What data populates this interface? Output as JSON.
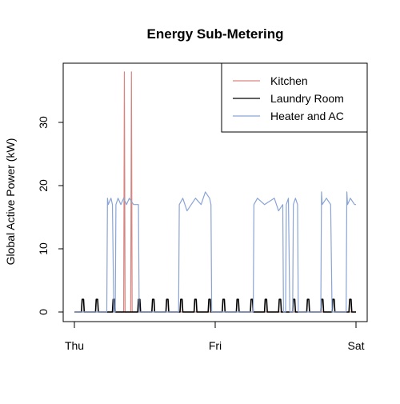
{
  "chart_data": {
    "type": "line",
    "title": "Energy Sub-Metering",
    "xlabel": "",
    "ylabel": "Global Active Power (kW)",
    "x_tick_labels": [
      "Thu",
      "Fri",
      "Sat"
    ],
    "x_ticks": [
      0,
      1,
      2
    ],
    "x_range": [
      0,
      2
    ],
    "ylim": [
      0,
      38
    ],
    "y_ticks": [
      0,
      10,
      20,
      30
    ],
    "grid": false,
    "legend_position": "top-right",
    "series": [
      {
        "name": "Kitchen",
        "color": "#d9837f",
        "points": [
          [
            0,
            0
          ],
          [
            0.35,
            0
          ],
          [
            0.355,
            38
          ],
          [
            0.36,
            0
          ],
          [
            0.4,
            0
          ],
          [
            0.405,
            38
          ],
          [
            0.41,
            0
          ],
          [
            2,
            0
          ]
        ]
      },
      {
        "name": "Laundry Room",
        "color": "#000000",
        "points": [
          [
            0,
            0
          ],
          [
            0.05,
            0
          ],
          [
            0.055,
            2
          ],
          [
            0.065,
            2
          ],
          [
            0.07,
            0
          ],
          [
            0.15,
            0
          ],
          [
            0.155,
            2
          ],
          [
            0.165,
            2
          ],
          [
            0.17,
            0
          ],
          [
            0.27,
            0
          ],
          [
            0.275,
            2
          ],
          [
            0.285,
            2
          ],
          [
            0.29,
            0
          ],
          [
            0.45,
            0
          ],
          [
            0.455,
            2
          ],
          [
            0.465,
            2
          ],
          [
            0.47,
            0
          ],
          [
            0.55,
            0
          ],
          [
            0.555,
            2
          ],
          [
            0.565,
            2
          ],
          [
            0.57,
            0
          ],
          [
            0.65,
            0
          ],
          [
            0.655,
            2
          ],
          [
            0.665,
            2
          ],
          [
            0.67,
            0
          ],
          [
            0.75,
            0
          ],
          [
            0.755,
            2
          ],
          [
            0.765,
            2
          ],
          [
            0.77,
            0
          ],
          [
            0.85,
            0
          ],
          [
            0.855,
            2
          ],
          [
            0.865,
            2
          ],
          [
            0.87,
            0
          ],
          [
            0.95,
            0
          ],
          [
            0.955,
            2
          ],
          [
            0.965,
            2
          ],
          [
            0.97,
            0
          ],
          [
            1.05,
            0
          ],
          [
            1.055,
            2
          ],
          [
            1.065,
            2
          ],
          [
            1.07,
            0
          ],
          [
            1.15,
            0
          ],
          [
            1.155,
            2
          ],
          [
            1.165,
            2
          ],
          [
            1.17,
            0
          ],
          [
            1.25,
            0
          ],
          [
            1.255,
            2
          ],
          [
            1.265,
            2
          ],
          [
            1.27,
            0
          ],
          [
            1.35,
            0
          ],
          [
            1.355,
            2
          ],
          [
            1.365,
            2
          ],
          [
            1.37,
            0
          ],
          [
            1.45,
            0
          ],
          [
            1.455,
            2
          ],
          [
            1.465,
            2
          ],
          [
            1.47,
            0
          ],
          [
            1.55,
            0
          ],
          [
            1.555,
            2
          ],
          [
            1.565,
            2
          ],
          [
            1.57,
            0
          ],
          [
            1.65,
            0
          ],
          [
            1.655,
            2
          ],
          [
            1.665,
            2
          ],
          [
            1.67,
            0
          ],
          [
            1.75,
            0
          ],
          [
            1.755,
            2
          ],
          [
            1.765,
            2
          ],
          [
            1.77,
            0
          ],
          [
            1.83,
            0
          ],
          [
            1.835,
            2
          ],
          [
            1.845,
            2
          ],
          [
            1.85,
            0
          ],
          [
            1.95,
            0
          ],
          [
            1.955,
            2
          ],
          [
            1.965,
            2
          ],
          [
            1.97,
            0
          ],
          [
            2.0,
            0
          ]
        ]
      },
      {
        "name": "Heater and AC",
        "color": "#8aa4d6",
        "points": [
          [
            0,
            0
          ],
          [
            0.23,
            0
          ],
          [
            0.235,
            18
          ],
          [
            0.24,
            17
          ],
          [
            0.26,
            18
          ],
          [
            0.27,
            17
          ],
          [
            0.28,
            0
          ],
          [
            0.29,
            0
          ],
          [
            0.295,
            17
          ],
          [
            0.31,
            18
          ],
          [
            0.33,
            17
          ],
          [
            0.35,
            18
          ],
          [
            0.37,
            17
          ],
          [
            0.39,
            18
          ],
          [
            0.42,
            17
          ],
          [
            0.455,
            17
          ],
          [
            0.46,
            0
          ],
          [
            0.74,
            0
          ],
          [
            0.745,
            17
          ],
          [
            0.77,
            18
          ],
          [
            0.8,
            16
          ],
          [
            0.83,
            17
          ],
          [
            0.86,
            18
          ],
          [
            0.9,
            17
          ],
          [
            0.93,
            19
          ],
          [
            0.96,
            18
          ],
          [
            0.97,
            17
          ],
          [
            0.975,
            0
          ],
          [
            1.27,
            0
          ],
          [
            1.275,
            17
          ],
          [
            1.3,
            18
          ],
          [
            1.35,
            17
          ],
          [
            1.42,
            18
          ],
          [
            1.45,
            16
          ],
          [
            1.48,
            17
          ],
          [
            1.485,
            0
          ],
          [
            1.5,
            0
          ],
          [
            1.505,
            17
          ],
          [
            1.52,
            18
          ],
          [
            1.53,
            0
          ],
          [
            1.55,
            0
          ],
          [
            1.555,
            17
          ],
          [
            1.57,
            18
          ],
          [
            1.585,
            17
          ],
          [
            1.59,
            0
          ],
          [
            1.75,
            0
          ],
          [
            1.755,
            19
          ],
          [
            1.76,
            17
          ],
          [
            1.79,
            18
          ],
          [
            1.82,
            17
          ],
          [
            1.83,
            0
          ],
          [
            1.93,
            0
          ],
          [
            1.935,
            19
          ],
          [
            1.94,
            17
          ],
          [
            1.96,
            18
          ],
          [
            1.99,
            17
          ],
          [
            2.0,
            17
          ]
        ]
      }
    ]
  }
}
